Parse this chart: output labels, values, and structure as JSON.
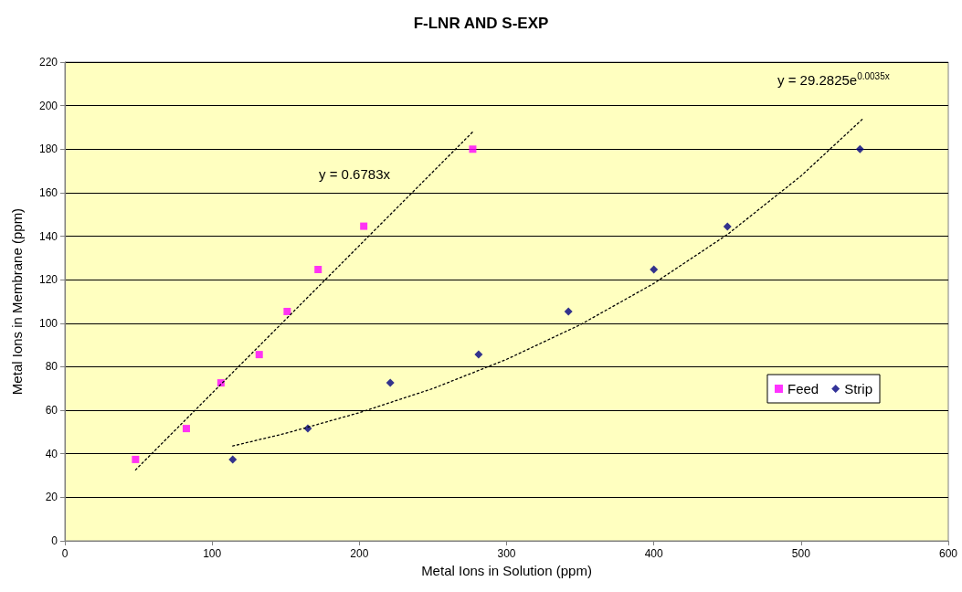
{
  "chart_data": {
    "type": "scatter",
    "title": "F-LNR AND S-EXP",
    "xlabel": "Metal Ions in Solution (ppm)",
    "ylabel": "Metal Ions in Membrane (ppm)",
    "series": [
      {
        "name": "Feed",
        "color": "#ff00ff",
        "marker": "square",
        "x": [
          48,
          82.5,
          106,
          132,
          151,
          172,
          203,
          277
        ],
        "values": [
          37.4,
          51.6,
          72.6,
          85.6,
          105.4,
          124.7,
          144.6,
          180
        ]
      },
      {
        "name": "Strip",
        "color": "#000080",
        "marker": "diamond",
        "x": [
          114,
          165,
          221,
          281,
          342,
          400,
          450,
          540
        ],
        "values": [
          37.4,
          51.6,
          72.6,
          85.6,
          105.4,
          124.7,
          144.4,
          180
        ]
      },
      {
        "type": "line",
        "color": "#000000",
        "marker": "none",
        "line_style": "dotted",
        "x": [
          48,
          278
        ],
        "values": [
          32.6,
          188.6
        ]
      },
      {
        "type": "line",
        "color": "#000000",
        "marker": "none",
        "line_style": "dotted",
        "x": [
          114,
          150,
          200,
          250,
          300,
          350,
          400,
          450,
          500,
          542
        ],
        "values": [
          43.6,
          49.4,
          58.9,
          70.0,
          83.4,
          99.3,
          118.3,
          140.8,
          167.7,
          194.0
        ]
      }
    ],
    "annotations": [
      "y = 0.6783x",
      "y = 29.2825e$^{0.0035x}$"
    ],
    "xlim": [
      0,
      600
    ],
    "xticks": [
      0,
      100,
      200,
      300,
      400,
      500,
      600
    ],
    "ylim": [
      0,
      220
    ],
    "yticks": [
      0,
      20,
      40,
      60,
      80,
      100,
      120,
      140,
      160,
      180,
      200,
      220
    ],
    "grid": "y",
    "legend": "right"
  }
}
